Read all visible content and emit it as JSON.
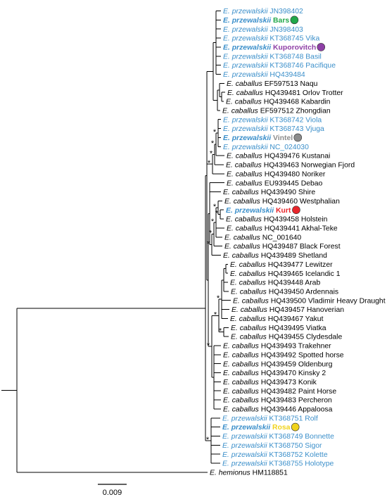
{
  "colors": {
    "przewalskii": "#3b8fca",
    "caballus": "#000000",
    "branch": "#000000",
    "Bars": "#22a84a",
    "Kuporovitch": "#8e3fa6",
    "Vintel": "#8c8c8c",
    "Kurt": "#e8252a",
    "Rosa": "#f0d31c"
  },
  "leaves": [
    {
      "genus": "E.",
      "species": "przewalskii",
      "label": "JN398402",
      "group": "przewalskii"
    },
    {
      "genus": "E.",
      "species": "przewalskii",
      "label": "Bars",
      "group": "przewalskii",
      "highlight": "Bars"
    },
    {
      "genus": "E.",
      "species": "przewalskii",
      "label": "JN398403",
      "group": "przewalskii"
    },
    {
      "genus": "E.",
      "species": "przewalskii",
      "label": "KT368745 Vika",
      "group": "przewalskii"
    },
    {
      "genus": "E.",
      "species": "przewalskii",
      "label": "Kuporovitch",
      "group": "przewalskii",
      "highlight": "Kuporovitch"
    },
    {
      "genus": "E.",
      "species": "przewalskii",
      "label": "KT368748 Basil",
      "group": "przewalskii"
    },
    {
      "genus": "E.",
      "species": "przewalskii",
      "label": "KT368746 Pacifique",
      "group": "przewalskii"
    },
    {
      "genus": "E.",
      "species": "przewalskii",
      "label": "HQ439484",
      "group": "przewalskii"
    },
    {
      "genus": "E.",
      "species": "caballus",
      "label": "EF597513 Naqu",
      "group": "caballus"
    },
    {
      "genus": "E.",
      "species": "caballus",
      "label": "HQ439481 Orlov Trotter",
      "group": "caballus"
    },
    {
      "genus": "E.",
      "species": "caballus",
      "label": "HQ439468 Kabardin",
      "group": "caballus"
    },
    {
      "genus": "E.",
      "species": "caballus",
      "label": "EF597512 Zhongdian",
      "group": "caballus"
    },
    {
      "genus": "E.",
      "species": "przewalskii",
      "label": "KT368742 Viola",
      "group": "przewalskii"
    },
    {
      "genus": "E.",
      "species": "przewalskii",
      "label": "KT368743 Vjuga",
      "group": "przewalskii"
    },
    {
      "genus": "E.",
      "species": "przewalskii",
      "label": "Vintel",
      "group": "przewalskii",
      "highlight": "Vintel"
    },
    {
      "genus": "E.",
      "species": "przewalskii",
      "label": "NC_024030",
      "group": "przewalskii"
    },
    {
      "genus": "E.",
      "species": "caballus",
      "label": "HQ439476 Kustanai",
      "group": "caballus"
    },
    {
      "genus": "E.",
      "species": "caballus",
      "label": "HQ439463 Norwegian Fjord",
      "group": "caballus"
    },
    {
      "genus": "E.",
      "species": "caballus",
      "label": "HQ439480 Noriker",
      "group": "caballus"
    },
    {
      "genus": "E.",
      "species": "caballus",
      "label": "EU939445 Debao",
      "group": "caballus"
    },
    {
      "genus": "E.",
      "species": "caballus",
      "label": "HQ439490 Shire",
      "group": "caballus"
    },
    {
      "genus": "E.",
      "species": "caballus",
      "label": "HQ439460 Westphalian",
      "group": "caballus"
    },
    {
      "genus": "E.",
      "species": "przewalskii",
      "label": "Kurt",
      "group": "przewalskii",
      "highlight": "Kurt"
    },
    {
      "genus": "E.",
      "species": "caballus",
      "label": "HQ439458 Holstein",
      "group": "caballus"
    },
    {
      "genus": "E.",
      "species": "caballus",
      "label": "HQ439441 Akhal-Teke",
      "group": "caballus"
    },
    {
      "genus": "E.",
      "species": "caballus",
      "label": "NC_001640",
      "group": "caballus"
    },
    {
      "genus": "E.",
      "species": "caballus",
      "label": "HQ439487 Black Forest",
      "group": "caballus"
    },
    {
      "genus": "E.",
      "species": "caballus",
      "label": "HQ439489 Shetland",
      "group": "caballus"
    },
    {
      "genus": "E.",
      "species": "caballus",
      "label": "HQ439477 Lewitzer",
      "group": "caballus"
    },
    {
      "genus": "E.",
      "species": "caballus",
      "label": "HQ439465 Icelandic 1",
      "group": "caballus"
    },
    {
      "genus": "E.",
      "species": "caballus",
      "label": "HQ439448 Arab",
      "group": "caballus"
    },
    {
      "genus": "E.",
      "species": "caballus",
      "label": "HQ439450 Ardennais",
      "group": "caballus"
    },
    {
      "genus": "E.",
      "species": "caballus",
      "label": "HQ439500 Vladimir Heavy Draught",
      "group": "caballus"
    },
    {
      "genus": "E.",
      "species": "caballus",
      "label": "HQ439457 Hanoverian",
      "group": "caballus"
    },
    {
      "genus": "E.",
      "species": "caballus",
      "label": "HQ439467 Yakut",
      "group": "caballus"
    },
    {
      "genus": "E.",
      "species": "caballus",
      "label": "HQ439495 Viatka",
      "group": "caballus"
    },
    {
      "genus": "E.",
      "species": "caballus",
      "label": "HQ439455 Clydesdale",
      "group": "caballus"
    },
    {
      "genus": "E.",
      "species": "caballus",
      "label": "HQ439493 Trakehner",
      "group": "caballus"
    },
    {
      "genus": "E.",
      "species": "caballus",
      "label": "HQ439492 Spotted horse",
      "group": "caballus"
    },
    {
      "genus": "E.",
      "species": "caballus",
      "label": "HQ439459 Oldenburg",
      "group": "caballus"
    },
    {
      "genus": "E.",
      "species": "caballus",
      "label": "HQ439470 Kinsky 2",
      "group": "caballus"
    },
    {
      "genus": "E.",
      "species": "caballus",
      "label": "HQ439473 Konik",
      "group": "caballus"
    },
    {
      "genus": "E.",
      "species": "caballus",
      "label": "HQ439482 Paint Horse",
      "group": "caballus"
    },
    {
      "genus": "E.",
      "species": "caballus",
      "label": "HQ439483 Percheron",
      "group": "caballus"
    },
    {
      "genus": "E.",
      "species": "caballus",
      "label": "HQ439446 Appaloosa",
      "group": "caballus"
    },
    {
      "genus": "E.",
      "species": "przewalskii",
      "label": "KT368751 Rolf",
      "group": "przewalskii"
    },
    {
      "genus": "E.",
      "species": "przewalskii",
      "label": "Rosa",
      "group": "przewalskii",
      "highlight": "Rosa"
    },
    {
      "genus": "E.",
      "species": "przewalskii",
      "label": "KT368749 Bonnette",
      "group": "przewalskii"
    },
    {
      "genus": "E.",
      "species": "przewalskii",
      "label": "KT368750 Sigor",
      "group": "przewalskii"
    },
    {
      "genus": "E.",
      "species": "przewalskii",
      "label": "KT368752 Kolette",
      "group": "przewalskii"
    },
    {
      "genus": "E.",
      "species": "przewalskii",
      "label": "KT368755 Holotype",
      "group": "przewalskii"
    },
    {
      "genus": "E.",
      "species": "hemionus",
      "label": "HM118851",
      "group": "caballus"
    }
  ],
  "support_marker": "*",
  "scale_bar": {
    "value": "0.009"
  }
}
